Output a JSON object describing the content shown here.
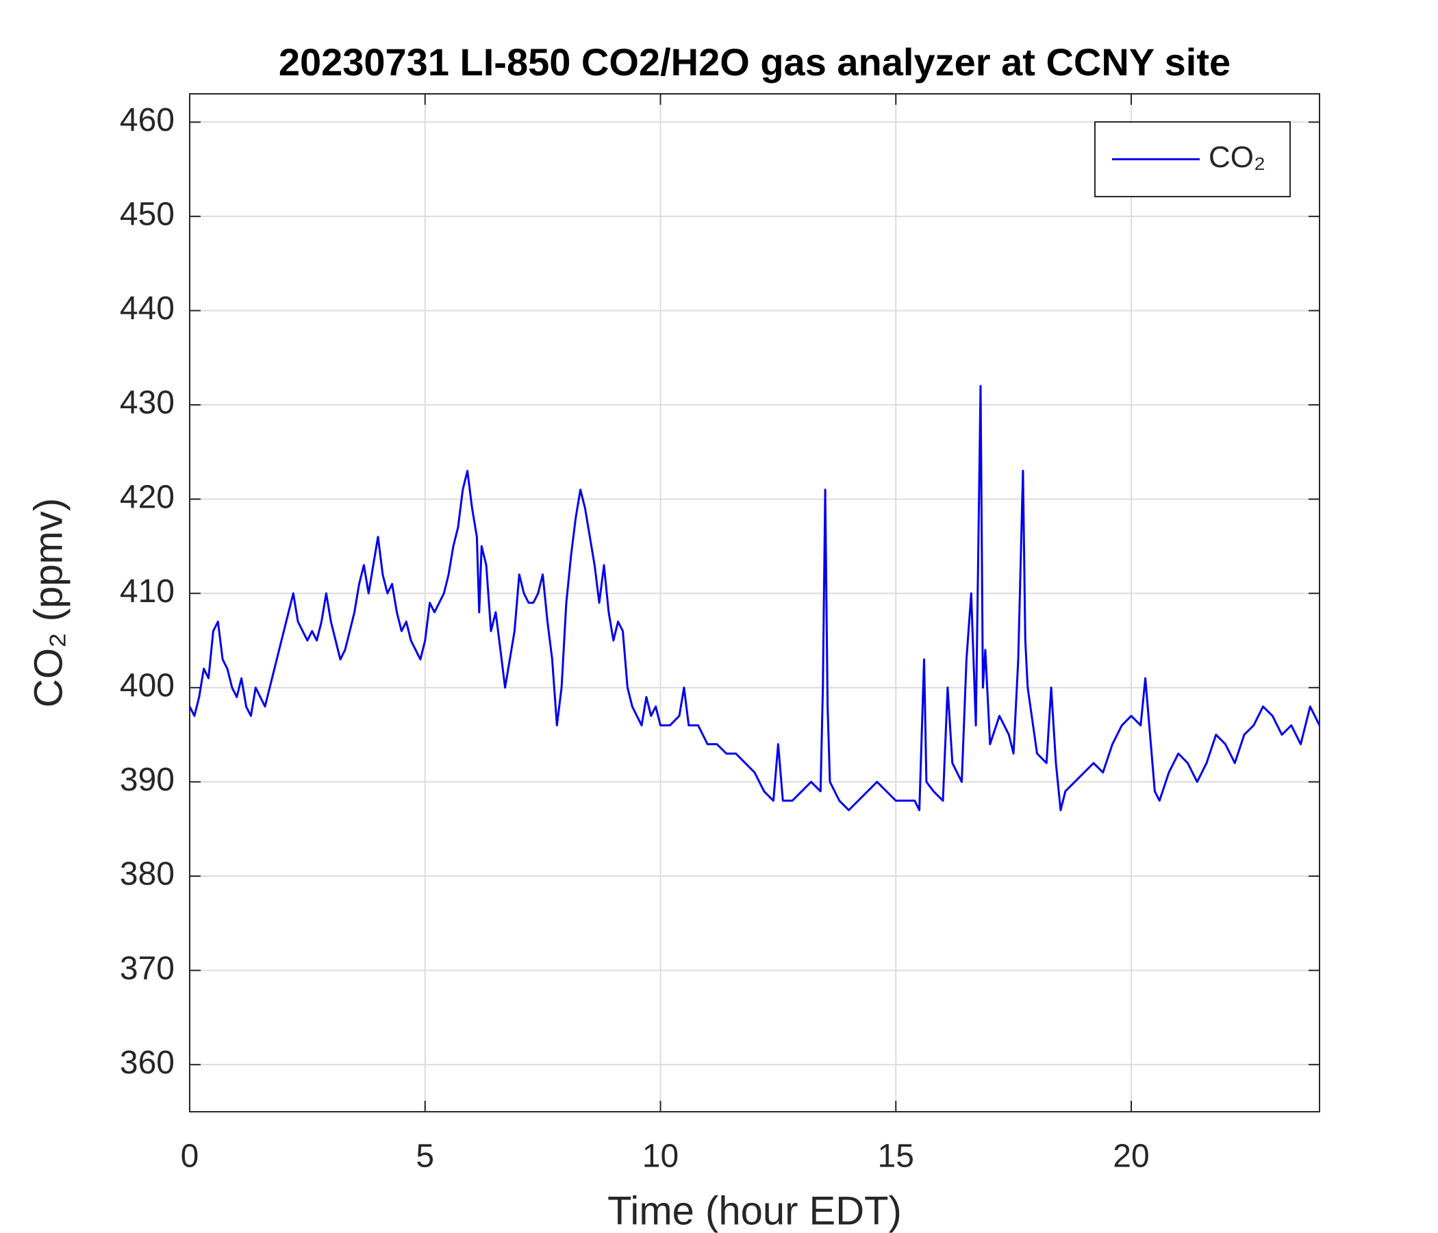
{
  "chart_data": {
    "type": "line",
    "title": "20230731 LI-850 CO2/H2O gas analyzer at CCNY site",
    "xlabel": "Time (hour EDT)",
    "ylabel": "CO₂ (ppmv)",
    "xlim": [
      0,
      24
    ],
    "xticks": [
      0,
      5,
      10,
      15,
      20
    ],
    "ylim": [
      355,
      463
    ],
    "yticks": [
      360,
      370,
      380,
      390,
      400,
      410,
      420,
      430,
      440,
      450,
      460
    ],
    "grid": true,
    "legend": "top-right",
    "x": [
      0,
      0.1,
      0.2,
      0.3,
      0.4,
      0.5,
      0.6,
      0.7,
      0.8,
      0.9,
      1.0,
      1.1,
      1.2,
      1.3,
      1.4,
      1.5,
      1.6,
      1.7,
      1.8,
      1.9,
      2.0,
      2.1,
      2.2,
      2.3,
      2.4,
      2.5,
      2.6,
      2.7,
      2.8,
      2.9,
      3.0,
      3.1,
      3.2,
      3.3,
      3.4,
      3.5,
      3.6,
      3.7,
      3.8,
      3.9,
      4.0,
      4.1,
      4.2,
      4.3,
      4.4,
      4.5,
      4.6,
      4.7,
      4.8,
      4.9,
      5.0,
      5.1,
      5.2,
      5.3,
      5.4,
      5.5,
      5.6,
      5.7,
      5.8,
      5.9,
      6.0,
      6.1,
      6.15,
      6.2,
      6.3,
      6.4,
      6.5,
      6.6,
      6.7,
      6.8,
      6.9,
      7.0,
      7.1,
      7.2,
      7.3,
      7.4,
      7.5,
      7.6,
      7.7,
      7.8,
      7.9,
      8.0,
      8.1,
      8.2,
      8.3,
      8.4,
      8.5,
      8.6,
      8.7,
      8.8,
      8.9,
      9.0,
      9.1,
      9.2,
      9.3,
      9.4,
      9.5,
      9.6,
      9.7,
      9.8,
      9.9,
      10.0,
      10.2,
      10.4,
      10.5,
      10.6,
      10.8,
      11.0,
      11.2,
      11.4,
      11.6,
      11.8,
      12.0,
      12.2,
      12.4,
      12.5,
      12.6,
      12.8,
      13.0,
      13.2,
      13.4,
      13.45,
      13.5,
      13.55,
      13.6,
      13.8,
      14.0,
      14.2,
      14.4,
      14.6,
      14.8,
      15.0,
      15.2,
      15.4,
      15.5,
      15.6,
      15.65,
      15.8,
      16.0,
      16.1,
      16.2,
      16.4,
      16.5,
      16.6,
      16.7,
      16.8,
      16.85,
      16.9,
      17.0,
      17.2,
      17.4,
      17.5,
      17.6,
      17.7,
      17.75,
      17.8,
      18.0,
      18.2,
      18.3,
      18.4,
      18.5,
      18.6,
      18.8,
      19.0,
      19.2,
      19.4,
      19.6,
      19.8,
      20.0,
      20.2,
      20.3,
      20.4,
      20.5,
      20.6,
      20.8,
      21.0,
      21.2,
      21.4,
      21.6,
      21.8,
      22.0,
      22.2,
      22.4,
      22.6,
      22.8,
      23.0,
      23.2,
      23.4,
      23.6,
      23.8,
      24.0
    ],
    "series": [
      {
        "name": "CO₂",
        "color": "#0000ee",
        "values": [
          398,
          397,
          399,
          402,
          401,
          406,
          407,
          403,
          402,
          400,
          399,
          401,
          398,
          397,
          400,
          399,
          398,
          400,
          402,
          404,
          406,
          408,
          410,
          407,
          406,
          405,
          406,
          405,
          407,
          410,
          407,
          405,
          403,
          404,
          406,
          408,
          411,
          413,
          410,
          413,
          416,
          412,
          410,
          411,
          408,
          406,
          407,
          405,
          404,
          403,
          405,
          409,
          408,
          409,
          410,
          412,
          415,
          417,
          421,
          423,
          419,
          416,
          408,
          415,
          413,
          406,
          408,
          404,
          400,
          403,
          406,
          412,
          410,
          409,
          409,
          410,
          412,
          407,
          403,
          396,
          400,
          409,
          414,
          418,
          421,
          419,
          416,
          413,
          409,
          413,
          408,
          405,
          407,
          406,
          400,
          398,
          397,
          396,
          399,
          397,
          398,
          396,
          396,
          397,
          400,
          396,
          396,
          394,
          394,
          393,
          393,
          392,
          391,
          389,
          388,
          394,
          388,
          388,
          389,
          390,
          389,
          400,
          421,
          398,
          390,
          388,
          387,
          388,
          389,
          390,
          389,
          388,
          388,
          388,
          387,
          403,
          390,
          389,
          388,
          400,
          392,
          390,
          403,
          410,
          396,
          432,
          400,
          404,
          394,
          397,
          395,
          393,
          403,
          423,
          405,
          400,
          393,
          392,
          400,
          392,
          387,
          389,
          390,
          391,
          392,
          391,
          394,
          396,
          397,
          396,
          401,
          395,
          389,
          388,
          391,
          393,
          392,
          390,
          392,
          395,
          394,
          392,
          395,
          396,
          398,
          397,
          395,
          396,
          394,
          398,
          396
        ]
      }
    ]
  }
}
